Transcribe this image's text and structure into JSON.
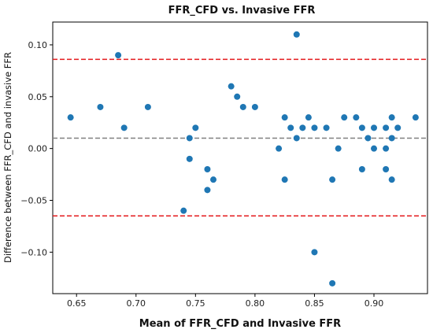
{
  "chart_data": {
    "type": "scatter",
    "title": "FFR_CFD  vs. Invasive FFR",
    "xlabel": "Mean of FFR_CFD and Invasive FFR",
    "ylabel": "Difference between FFR_CFD and invasive FFR",
    "xlim": [
      0.63,
      0.945
    ],
    "ylim": [
      -0.14,
      0.122
    ],
    "x_ticks": [
      0.65,
      0.7,
      0.75,
      0.8,
      0.85,
      0.9
    ],
    "x_tick_labels": [
      "0.65",
      "0.70",
      "0.75",
      "0.80",
      "0.85",
      "0.90"
    ],
    "y_ticks": [
      -0.1,
      -0.05,
      0.0,
      0.05,
      0.1
    ],
    "y_tick_labels": [
      "−0.10",
      "−0.05",
      "0.00",
      "0.05",
      "0.10"
    ],
    "grid": false,
    "point_color": "#1f77b4",
    "reference_lines": [
      {
        "y": 0.086,
        "style": "dashed",
        "color": "#e41a1c"
      },
      {
        "y": 0.01,
        "style": "dashed",
        "color": "#808080"
      },
      {
        "y": -0.065,
        "style": "dashed",
        "color": "#e41a1c"
      }
    ],
    "points": [
      {
        "x": 0.645,
        "y": 0.03
      },
      {
        "x": 0.67,
        "y": 0.04
      },
      {
        "x": 0.685,
        "y": 0.09
      },
      {
        "x": 0.69,
        "y": 0.02
      },
      {
        "x": 0.71,
        "y": 0.04
      },
      {
        "x": 0.74,
        "y": -0.06
      },
      {
        "x": 0.745,
        "y": 0.01
      },
      {
        "x": 0.745,
        "y": -0.01
      },
      {
        "x": 0.75,
        "y": 0.02
      },
      {
        "x": 0.76,
        "y": -0.02
      },
      {
        "x": 0.76,
        "y": -0.04
      },
      {
        "x": 0.765,
        "y": -0.03
      },
      {
        "x": 0.78,
        "y": 0.06
      },
      {
        "x": 0.785,
        "y": 0.05
      },
      {
        "x": 0.79,
        "y": 0.04
      },
      {
        "x": 0.8,
        "y": 0.04
      },
      {
        "x": 0.82,
        "y": 0.0
      },
      {
        "x": 0.825,
        "y": 0.03
      },
      {
        "x": 0.825,
        "y": -0.03
      },
      {
        "x": 0.83,
        "y": 0.02
      },
      {
        "x": 0.835,
        "y": 0.11
      },
      {
        "x": 0.835,
        "y": 0.01
      },
      {
        "x": 0.84,
        "y": 0.02
      },
      {
        "x": 0.845,
        "y": 0.03
      },
      {
        "x": 0.85,
        "y": 0.02
      },
      {
        "x": 0.85,
        "y": -0.1
      },
      {
        "x": 0.86,
        "y": 0.02
      },
      {
        "x": 0.865,
        "y": -0.03
      },
      {
        "x": 0.865,
        "y": -0.13
      },
      {
        "x": 0.87,
        "y": 0.0
      },
      {
        "x": 0.875,
        "y": 0.03
      },
      {
        "x": 0.885,
        "y": 0.03
      },
      {
        "x": 0.89,
        "y": 0.02
      },
      {
        "x": 0.89,
        "y": -0.02
      },
      {
        "x": 0.895,
        "y": 0.01
      },
      {
        "x": 0.9,
        "y": 0.02
      },
      {
        "x": 0.9,
        "y": 0.0
      },
      {
        "x": 0.91,
        "y": 0.02
      },
      {
        "x": 0.91,
        "y": 0.0
      },
      {
        "x": 0.91,
        "y": -0.02
      },
      {
        "x": 0.915,
        "y": 0.03
      },
      {
        "x": 0.915,
        "y": 0.01
      },
      {
        "x": 0.915,
        "y": -0.03
      },
      {
        "x": 0.92,
        "y": 0.02
      },
      {
        "x": 0.935,
        "y": 0.03
      }
    ]
  }
}
